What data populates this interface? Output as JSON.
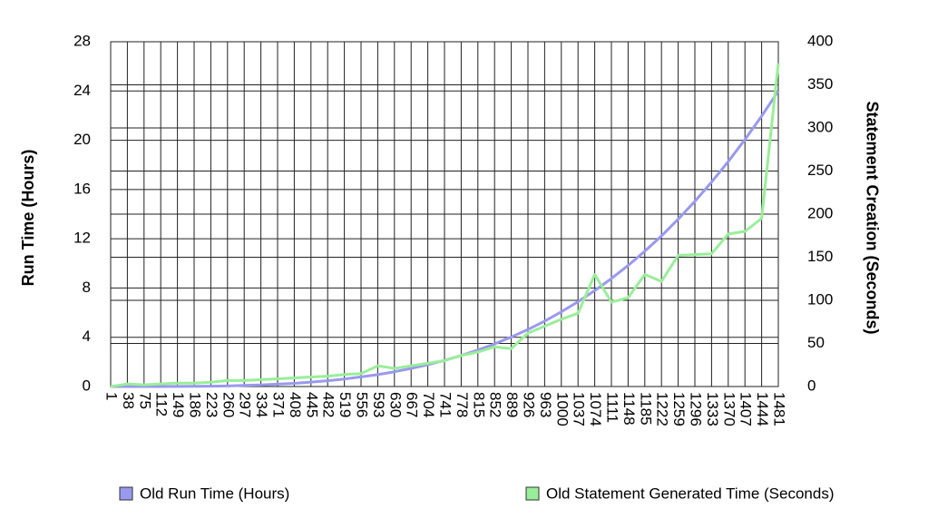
{
  "chart_data": {
    "type": "line",
    "categories": [
      1,
      38,
      75,
      112,
      149,
      186,
      223,
      260,
      297,
      334,
      371,
      408,
      445,
      482,
      519,
      556,
      593,
      630,
      667,
      704,
      741,
      778,
      815,
      852,
      889,
      926,
      963,
      1000,
      1037,
      1074,
      1111,
      1148,
      1185,
      1222,
      1259,
      1296,
      1333,
      1370,
      1407,
      1444,
      1481
    ],
    "y_label": "Run Time (Hours)",
    "y2_label": "Statement Creation (Seconds)",
    "ylim": [
      0,
      28
    ],
    "yticks": [
      0,
      4,
      8,
      12,
      16,
      20,
      24,
      28
    ],
    "y2lim": [
      0,
      400
    ],
    "y2ticks": [
      0,
      50,
      100,
      150,
      200,
      250,
      300,
      350,
      400
    ],
    "grid": true,
    "legend": "bottom",
    "series": [
      {
        "name": "Old Run Time (Hours)",
        "color": "#9999ee",
        "values": [
          0,
          0,
          0,
          0.003,
          0.008,
          0.017,
          0.03,
          0.05,
          0.09,
          0.13,
          0.19,
          0.26,
          0.36,
          0.47,
          0.61,
          0.78,
          0.97,
          1.2,
          1.47,
          1.77,
          2.12,
          2.52,
          2.96,
          3.46,
          4.02,
          4.63,
          5.31,
          6.07,
          6.89,
          7.79,
          8.77,
          9.83,
          10.99,
          12.23,
          13.59,
          15.04,
          16.6,
          18.27,
          20.06,
          21.96,
          24
        ]
      },
      {
        "name": "Old Statement Generated Time (Seconds)",
        "color": "#99ee99",
        "axis": "y2",
        "values": [
          0,
          3,
          2,
          3,
          4,
          4,
          5,
          7,
          7,
          8,
          9,
          10,
          11,
          12,
          14,
          15,
          24,
          21,
          24,
          27,
          30,
          36,
          40,
          46,
          44,
          62,
          70,
          78,
          85,
          130,
          98,
          103,
          130,
          122,
          152,
          153,
          154,
          177,
          180,
          195,
          375
        ]
      }
    ]
  }
}
